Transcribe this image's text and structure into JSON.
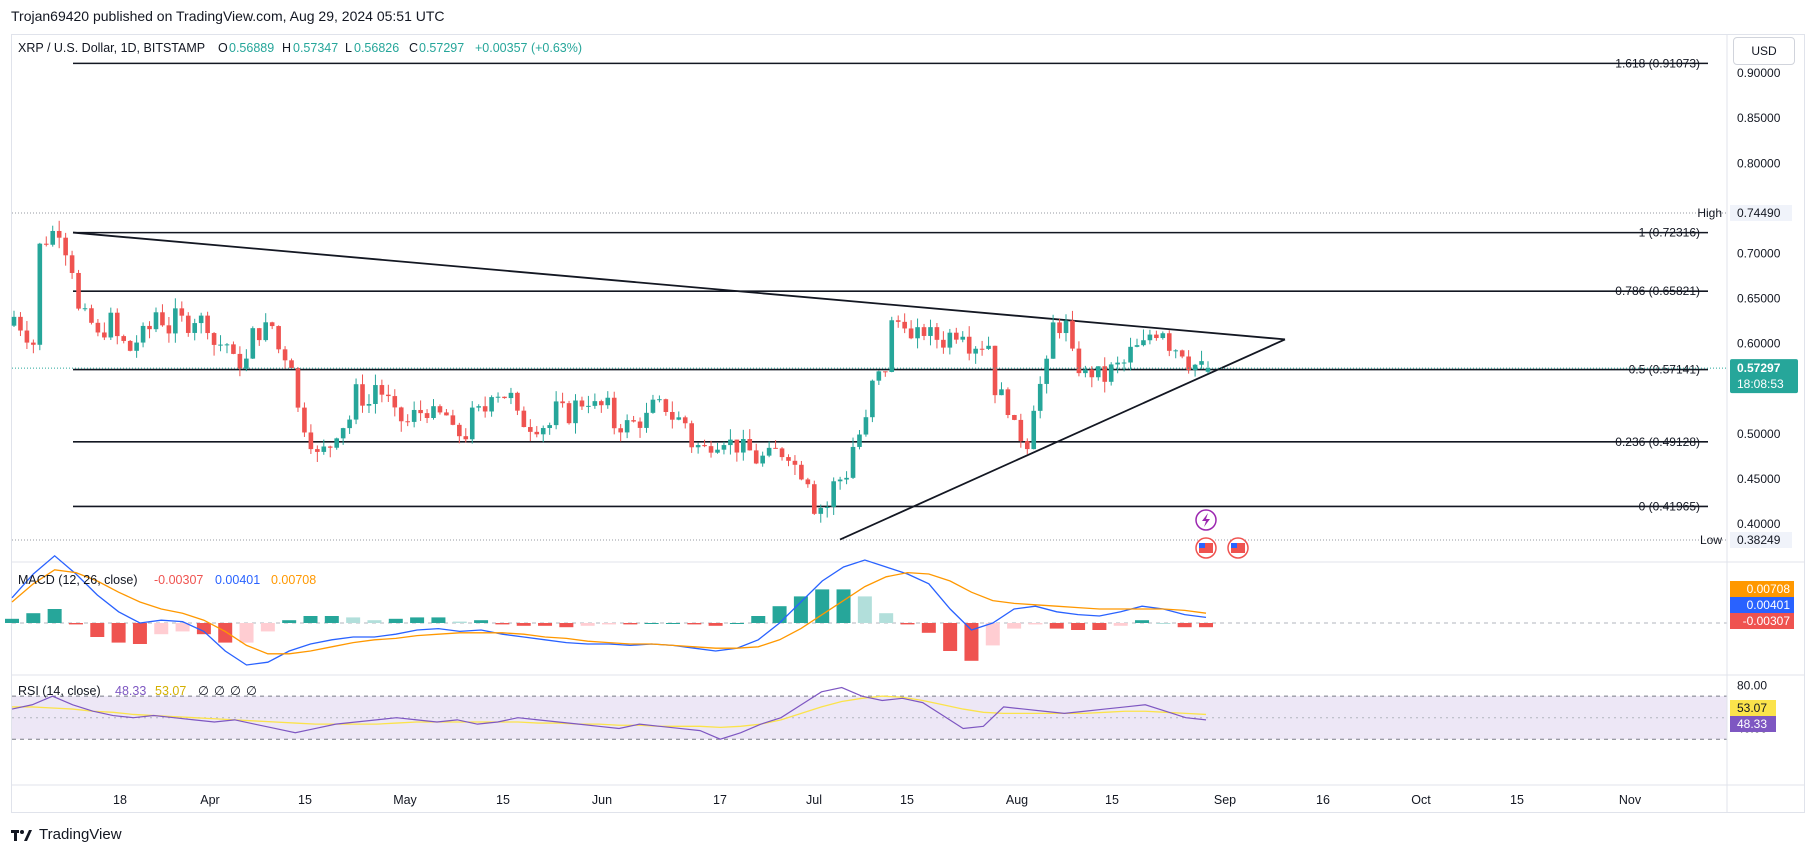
{
  "publish_line": "Trojan69420 published on TradingView.com, Aug 29, 2024 05:51 UTC",
  "brand": "TradingView",
  "currency_button": "USD",
  "header": {
    "symbol": "XRP / U.S. Dollar, 1D, BITSTAMP",
    "o_label": "O",
    "o": "0.56889",
    "h_label": "H",
    "h": "0.57347",
    "l_label": "L",
    "l": "0.56826",
    "c_label": "C",
    "c": "0.57297",
    "change": "+0.00357 (+0.63%)"
  },
  "colors": {
    "up": "#26a69a",
    "down": "#ef5350",
    "macd_line": "#2962ff",
    "signal_line": "#ff9800",
    "rsi_line": "#7e57c2",
    "rsi_ma": "#fbe34b",
    "rsi_band": "#ede7f6"
  },
  "chart_data": [
    {
      "type": "candlestick",
      "title": "XRP / U.S. Dollar, 1D, BITSTAMP",
      "x_ticks": [
        "18",
        "Apr",
        "15",
        "May",
        "15",
        "Jun",
        "17",
        "Jul",
        "15",
        "Aug",
        "15",
        "Sep",
        "16",
        "Oct",
        "15",
        "Nov"
      ],
      "y_ticks": [
        "0.90000",
        "0.85000",
        "0.80000",
        "0.70000",
        "0.65000",
        "0.60000",
        "0.50000",
        "0.45000",
        "0.40000"
      ],
      "ylim": [
        0.365,
        0.93
      ],
      "last_price": {
        "value": 0.57297,
        "label": "0.57297",
        "countdown": "18:08:53"
      },
      "high_marker": {
        "label": "High",
        "value_text": "0.74490",
        "value": 0.7449
      },
      "low_marker": {
        "label": "Low",
        "value_text": "0.38249",
        "value": 0.38249
      },
      "fib_levels": [
        {
          "label": "1.618 (0.91073)",
          "value": 0.91073
        },
        {
          "label": "1 (0.72316)",
          "value": 0.72316
        },
        {
          "label": "0.786 (0.65821)",
          "value": 0.65821
        },
        {
          "label": "0.5 (0.57141)",
          "value": 0.57141
        },
        {
          "label": "0.236 (0.49128)",
          "value": 0.49128
        },
        {
          "label": "0 (0.41965)",
          "value": 0.41965
        }
      ],
      "trendlines": [
        {
          "name": "upper",
          "from": [
            "Mar 6",
            0.7232
          ],
          "to": [
            "Sep 10",
            0.6048
          ]
        },
        {
          "name": "lower",
          "from": [
            "Jul 5",
            0.383
          ],
          "to": [
            "Sep 10",
            0.6048
          ]
        }
      ],
      "ohlc_path": [
        [
          0.62,
          0.63
        ],
        [
          0.6,
          0.7
        ],
        [
          0.725,
          0.745
        ],
        [
          0.68,
          0.64
        ],
        [
          0.62,
          0.6
        ],
        [
          0.63,
          0.61
        ],
        [
          0.59,
          0.6
        ],
        [
          0.62,
          0.64
        ],
        [
          0.61,
          0.63
        ],
        [
          0.62,
          0.63
        ],
        [
          0.62,
          0.6
        ],
        [
          0.6,
          0.58
        ],
        [
          0.58,
          0.61
        ],
        [
          0.62,
          0.6
        ],
        [
          0.58,
          0.54
        ],
        [
          0.49,
          0.47
        ],
        [
          0.49,
          0.5
        ],
        [
          0.52,
          0.55
        ],
        [
          0.53,
          0.56
        ],
        [
          0.53,
          0.52
        ],
        [
          0.51,
          0.52
        ],
        [
          0.53,
          0.52
        ],
        [
          0.52,
          0.5
        ],
        [
          0.5,
          0.52
        ],
        [
          0.53,
          0.55
        ],
        [
          0.54,
          0.52
        ],
        [
          0.51,
          0.51
        ],
        [
          0.51,
          0.53
        ],
        [
          0.52,
          0.53
        ],
        [
          0.54,
          0.53
        ],
        [
          0.53,
          0.51
        ],
        [
          0.51,
          0.51
        ],
        [
          0.52,
          0.53
        ],
        [
          0.53,
          0.52
        ],
        [
          0.51,
          0.49
        ],
        [
          0.48,
          0.49
        ],
        [
          0.5,
          0.49
        ],
        [
          0.48,
          0.47
        ],
        [
          0.475,
          0.48
        ],
        [
          0.48,
          0.47
        ],
        [
          0.45,
          0.42
        ],
        [
          0.42,
          0.44
        ],
        [
          0.46,
          0.48
        ],
        [
          0.52,
          0.55
        ],
        [
          0.58,
          0.62
        ],
        [
          0.63,
          0.6
        ],
        [
          0.62,
          0.61
        ],
        [
          0.6,
          0.61
        ],
        [
          0.62,
          0.6
        ],
        [
          0.6,
          0.56
        ],
        [
          0.53,
          0.51
        ],
        [
          0.49,
          0.52
        ],
        [
          0.58,
          0.62
        ],
        [
          0.62,
          0.59
        ],
        [
          0.56,
          0.57
        ],
        [
          0.56,
          0.57
        ],
        [
          0.58,
          0.59
        ],
        [
          0.6,
          0.61
        ],
        [
          0.62,
          0.6
        ],
        [
          0.59,
          0.58
        ],
        [
          0.57,
          0.573
        ]
      ]
    },
    {
      "type": "macd",
      "title": "MACD (12, 26, close)",
      "values_text": [
        "-0.00307",
        "0.00401",
        "0.00708"
      ],
      "axis_values": {
        "signal": "0.00708",
        "macd": "0.00401",
        "histogram": "-0.00307"
      },
      "macd_path": [
        0.018,
        0.035,
        0.048,
        0.035,
        0.02,
        0.008,
        0.0,
        0.002,
        0.001,
        -0.006,
        -0.02,
        -0.03,
        -0.028,
        -0.02,
        -0.015,
        -0.012,
        -0.01,
        -0.01,
        -0.008,
        -0.005,
        -0.004,
        -0.006,
        -0.005,
        -0.008,
        -0.01,
        -0.012,
        -0.014,
        -0.015,
        -0.015,
        -0.016,
        -0.015,
        -0.016,
        -0.018,
        -0.02,
        -0.018,
        -0.012,
        0.0,
        0.015,
        0.03,
        0.04,
        0.045,
        0.04,
        0.035,
        0.028,
        0.01,
        -0.005,
        0.0,
        0.01,
        0.012,
        0.008,
        0.006,
        0.005,
        0.008,
        0.012,
        0.01,
        0.006,
        0.004
      ],
      "signal_path": [
        0.015,
        0.028,
        0.038,
        0.036,
        0.03,
        0.022,
        0.015,
        0.01,
        0.007,
        0.002,
        -0.006,
        -0.016,
        -0.022,
        -0.022,
        -0.02,
        -0.017,
        -0.014,
        -0.012,
        -0.011,
        -0.009,
        -0.008,
        -0.007,
        -0.007,
        -0.007,
        -0.008,
        -0.01,
        -0.011,
        -0.013,
        -0.014,
        -0.015,
        -0.015,
        -0.016,
        -0.017,
        -0.018,
        -0.018,
        -0.017,
        -0.012,
        -0.004,
        0.006,
        0.016,
        0.026,
        0.033,
        0.036,
        0.035,
        0.03,
        0.022,
        0.016,
        0.014,
        0.013,
        0.012,
        0.011,
        0.01,
        0.01,
        0.01,
        0.01,
        0.009,
        0.007
      ]
    },
    {
      "type": "line",
      "title": "RSI (14, close)",
      "values_text": [
        "48.33",
        "53.07",
        "∅",
        "∅",
        "∅",
        "∅"
      ],
      "y_ticks": [
        "80.00",
        "40.00"
      ],
      "axis_values": {
        "rsi_ma": "53.07",
        "rsi": "48.33"
      },
      "band": [
        30,
        70
      ],
      "ylim": [
        20,
        85
      ],
      "rsi_path": [
        58,
        62,
        70,
        62,
        56,
        52,
        50,
        52,
        50,
        48,
        46,
        48,
        44,
        40,
        36,
        40,
        44,
        46,
        48,
        50,
        48,
        46,
        48,
        44,
        46,
        50,
        48,
        46,
        44,
        42,
        40,
        44,
        42,
        40,
        38,
        30,
        36,
        44,
        50,
        62,
        74,
        78,
        70,
        66,
        68,
        64,
        52,
        40,
        42,
        60,
        58,
        56,
        54,
        56,
        58,
        60,
        62,
        56,
        50,
        48
      ],
      "rsi_ma_path": [
        60,
        60,
        59,
        58,
        56,
        55,
        53,
        52,
        51,
        50,
        49,
        48,
        47,
        46,
        45,
        44,
        44,
        44,
        44,
        45,
        46,
        46,
        46,
        46,
        46,
        46,
        45,
        45,
        44,
        44,
        43,
        43,
        42,
        42,
        42,
        41,
        42,
        44,
        48,
        54,
        60,
        65,
        68,
        70,
        69,
        66,
        62,
        58,
        55,
        54,
        54,
        54,
        54,
        54,
        55,
        56,
        56,
        55,
        54,
        53
      ]
    }
  ],
  "x_dates": {
    "first_candle": "Feb 24",
    "high_candle": "Mar 6",
    "last_candle": "Aug 28",
    "apex": "Sep 10"
  },
  "event_icons": [
    "flash-icon",
    "us-flag-icon",
    "us-flag-icon"
  ]
}
